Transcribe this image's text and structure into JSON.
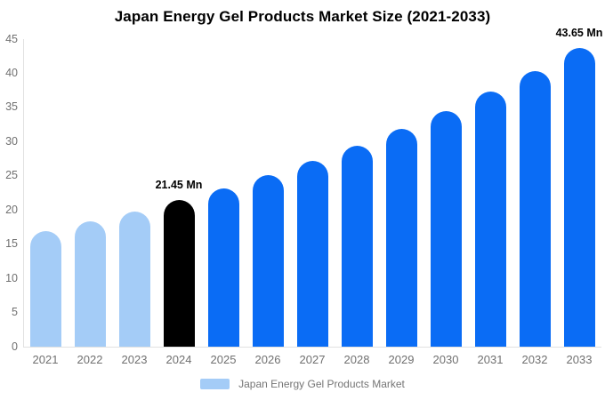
{
  "title": "Japan Energy Gel Products Market Size (2021-2033)",
  "legend": {
    "label": "Japan Energy Gel Products Market"
  },
  "colors": {
    "background": "#ffffff",
    "title_text": "#000000",
    "axis_line": "#e1e1e1",
    "tick_text": "#707070",
    "legend_text": "#757575",
    "annotation_text": "#000000",
    "bar_past": "#a4ccf7",
    "bar_current": "#000000",
    "bar_forecast": "#0a6cf5"
  },
  "y_axis": {
    "ticks": [
      0,
      5,
      10,
      15,
      20,
      25,
      30,
      35,
      40,
      45
    ],
    "min": 0,
    "max": 45
  },
  "chart_data": {
    "type": "bar",
    "title": "Japan Energy Gel Products Market Size (2021-2033)",
    "xlabel": "",
    "ylabel": "",
    "unit": "Mn",
    "ylim": [
      0,
      45
    ],
    "grid": false,
    "legend_position": "bottom",
    "categories": [
      "2021",
      "2022",
      "2023",
      "2024",
      "2025",
      "2026",
      "2027",
      "2028",
      "2029",
      "2030",
      "2031",
      "2032",
      "2033"
    ],
    "values": [
      16.93,
      18.32,
      19.82,
      21.45,
      23.21,
      25.12,
      27.18,
      29.41,
      31.83,
      34.44,
      37.27,
      40.33,
      43.65
    ],
    "bar_roles": [
      "past",
      "past",
      "past",
      "current",
      "forecast",
      "forecast",
      "forecast",
      "forecast",
      "forecast",
      "forecast",
      "forecast",
      "forecast",
      "forecast"
    ],
    "annotations": [
      {
        "category": "2024",
        "text": "21.45 Mn"
      },
      {
        "category": "2033",
        "text": "43.65 Mn"
      }
    ]
  }
}
